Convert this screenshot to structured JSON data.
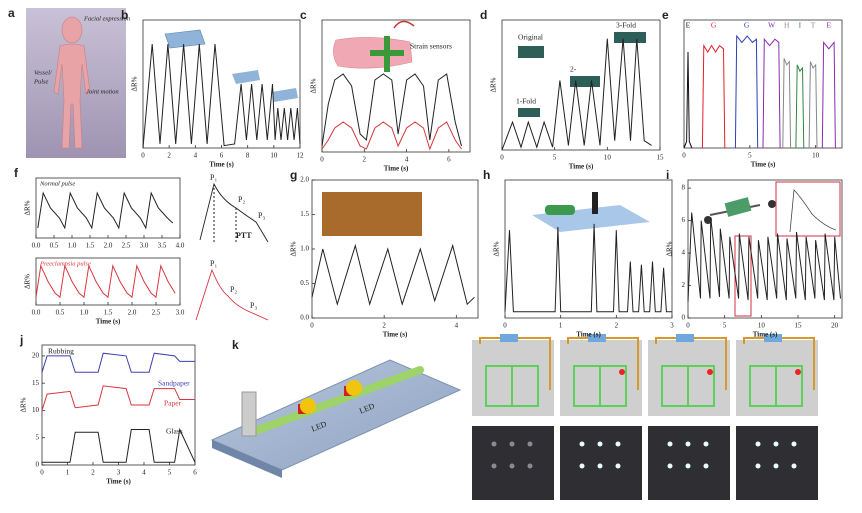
{
  "chart_data": [
    {
      "type": "line",
      "panel": "b",
      "xlabel": "Time (s)",
      "ylabel": "ΔR%",
      "xlim": [
        0,
        12
      ],
      "xticks": [
        0,
        2,
        4,
        6,
        8,
        10,
        12
      ],
      "ylim": [
        0,
        16
      ],
      "x": [
        0,
        0.7,
        1.3,
        1.9,
        2.5,
        3.1,
        3.7,
        4.3,
        4.9,
        5.5,
        6.2,
        7.0,
        7.5,
        7.9,
        8.3,
        8.7,
        9.1,
        9.5,
        9.9,
        10.1,
        10.3,
        10.55,
        10.8,
        11.05,
        11.3,
        11.55,
        11.8,
        12
      ],
      "series": [
        {
          "color": "#222222",
          "values": [
            0,
            13,
            0.5,
            13,
            0.5,
            13,
            0.5,
            13,
            0.5,
            13,
            0.3,
            0.5,
            8,
            1,
            8,
            1,
            8,
            1,
            8,
            1,
            5,
            1,
            5,
            1,
            5,
            1,
            5,
            0.5
          ]
        }
      ]
    },
    {
      "type": "line",
      "panel": "c",
      "xlabel": "Time (s)",
      "ylabel": "ΔR%",
      "xlim": [
        0,
        7
      ],
      "xticks": [
        0,
        2,
        4,
        6
      ],
      "ylim": [
        0,
        22
      ],
      "annotations": [
        "Strain sensors"
      ],
      "x": [
        0,
        0.3,
        0.6,
        1.0,
        1.4,
        1.8,
        2.1,
        2.5,
        2.9,
        3.3,
        3.6,
        4.0,
        4.4,
        4.8,
        5.1,
        5.5,
        5.9,
        6.3,
        6.6
      ],
      "series": [
        {
          "color": "#222222",
          "values": [
            1,
            8,
            12,
            13,
            11,
            3,
            2,
            12,
            13,
            12,
            3,
            12,
            13,
            11,
            2,
            12,
            13,
            5,
            1
          ]
        },
        {
          "color": "#d9363e",
          "values": [
            0.5,
            2,
            4,
            5,
            4,
            1,
            0.5,
            4,
            5,
            4,
            1,
            4,
            5,
            4,
            0.5,
            4,
            5,
            2,
            0.5
          ]
        }
      ]
    },
    {
      "type": "line",
      "panel": "d",
      "xlabel": "Time (s)",
      "ylabel": "ΔR%",
      "xlim": [
        0,
        15
      ],
      "xticks": [
        0,
        5,
        10,
        15
      ],
      "ylim": [
        0,
        14
      ],
      "annotations": [
        "Original",
        "1-Fold",
        "2-",
        "3-Fold"
      ],
      "x": [
        0,
        1,
        1.8,
        2.5,
        3.3,
        4,
        4.8,
        5.5,
        6.3,
        7,
        7.8,
        8.5,
        9.3,
        10,
        10.7,
        11.5,
        12.2,
        12.8,
        13.5,
        14.2
      ],
      "series": [
        {
          "color": "#222222",
          "values": [
            0,
            3,
            0.3,
            3,
            0.3,
            3,
            0.3,
            7.5,
            0.5,
            7.5,
            0.5,
            7.5,
            0.5,
            12,
            1,
            12,
            1,
            12,
            1,
            0.5
          ]
        }
      ]
    },
    {
      "type": "line",
      "panel": "e",
      "xlabel": "Time (s)",
      "xlim": [
        0,
        12
      ],
      "xticks": [
        0,
        5,
        10
      ],
      "ylim": [
        0,
        40
      ],
      "series": [
        {
          "name": "E",
          "color": "#111111",
          "x": [
            0,
            0.2,
            0.3,
            0.4,
            0.6
          ],
          "values": [
            0,
            2,
            30,
            2,
            0
          ]
        },
        {
          "name": "G",
          "color": "#e0202a",
          "x": [
            1.4,
            1.5,
            1.8,
            2.1,
            2.4,
            2.7,
            3.0,
            3.1
          ],
          "values": [
            0,
            32,
            30,
            32,
            30,
            32,
            31,
            0
          ]
        },
        {
          "name": "G",
          "color": "#2b3fb8",
          "x": [
            3.9,
            4.0,
            4.4,
            4.8,
            5.2,
            5.5,
            5.6
          ],
          "values": [
            0,
            35,
            33,
            35,
            33,
            34,
            0
          ]
        },
        {
          "name": "W",
          "color": "#8a2bb0",
          "x": [
            6.0,
            6.1,
            6.5,
            6.9,
            7.2,
            7.3
          ],
          "values": [
            0,
            34,
            32,
            34,
            33,
            0
          ]
        },
        {
          "name": "H",
          "color": "#888888",
          "x": [
            7.5,
            7.6,
            7.8,
            8.0,
            8.1
          ],
          "values": [
            0,
            28,
            26,
            27,
            0
          ]
        },
        {
          "name": "I",
          "color": "#2c8a3a",
          "x": [
            8.5,
            8.6,
            8.8,
            9.0,
            9.1
          ],
          "values": [
            0,
            26,
            24,
            25,
            0
          ]
        },
        {
          "name": "T",
          "color": "#888888",
          "x": [
            9.5,
            9.6,
            9.8,
            10.0,
            10.1
          ],
          "values": [
            0,
            27,
            25,
            26,
            0
          ]
        },
        {
          "name": "E",
          "color": "#8a2bb0",
          "x": [
            10.5,
            10.6,
            11.0,
            11.4,
            11.5
          ],
          "values": [
            0,
            33,
            31,
            33,
            0
          ]
        }
      ]
    },
    {
      "type": "line",
      "panel": "f",
      "title": "Normal pulse",
      "ylabel": "ΔR%",
      "xlim": [
        0,
        4
      ],
      "ylim": [
        0,
        6
      ],
      "xticks": [
        {
          "value": 0,
          "label": "0.0"
        },
        0.5,
        {
          "value": 1,
          "label": "1.0"
        },
        1.5,
        {
          "value": 2,
          "label": "2.0"
        },
        2.5,
        {
          "value": 3,
          "label": "3.0"
        },
        3.5,
        {
          "value": 4,
          "label": "4.0"
        }
      ],
      "x": [
        0.05,
        0.2,
        0.4,
        0.65,
        0.8,
        0.95,
        1.15,
        1.4,
        1.55,
        1.7,
        1.9,
        2.15,
        2.3,
        2.45,
        2.65,
        2.9,
        3.05,
        3.2,
        3.4,
        3.65,
        3.8
      ],
      "series": [
        {
          "color": "#222222",
          "values": [
            1,
            4.5,
            3,
            2,
            1,
            4.5,
            3,
            2,
            1,
            4.5,
            3,
            2,
            1,
            4.5,
            3,
            2,
            1,
            4.5,
            3,
            2,
            1.5
          ]
        }
      ]
    },
    {
      "type": "line",
      "title": "Preeclampsia pulse",
      "xlabel": "Time (s)",
      "ylabel": "ΔR%",
      "xlim": [
        0,
        3
      ],
      "ylim": [
        0,
        6
      ],
      "xticks": [
        {
          "value": 0,
          "label": "0.0"
        },
        0.5,
        {
          "value": 1,
          "label": "1.0"
        },
        1.5,
        {
          "value": 2,
          "label": "2.0"
        },
        2.5,
        {
          "value": 3,
          "label": "3.0"
        }
      ],
      "x": [
        0,
        0.1,
        0.25,
        0.4,
        0.5,
        0.6,
        0.75,
        0.9,
        1.0,
        1.1,
        1.25,
        1.4,
        1.5,
        1.6,
        1.75,
        1.9,
        2.0,
        2.1,
        2.25,
        2.4,
        2.5,
        2.6,
        2.75,
        2.9
      ],
      "series": [
        {
          "color": "#d9363e",
          "values": [
            1,
            5,
            3,
            1.5,
            1,
            5,
            3,
            1.5,
            1,
            5,
            3,
            1.5,
            1,
            5,
            3,
            1.5,
            1,
            5,
            3,
            1.5,
            1,
            5,
            3,
            1.5
          ]
        }
      ]
    },
    {
      "type": "line",
      "panel": "g",
      "xlabel": "Time (s)",
      "ylabel": "ΔR%",
      "xlim": [
        0,
        4.6
      ],
      "xticks": [
        0,
        2,
        4
      ],
      "ylim": [
        0,
        2
      ],
      "yticks": [
        {
          "value": 0,
          "label": "0.0"
        },
        0.5,
        {
          "value": 1,
          "label": "1.0"
        },
        1.5,
        {
          "value": 2,
          "label": "2.0"
        }
      ],
      "x": [
        0,
        0.3,
        0.7,
        1.2,
        1.6,
        2.1,
        2.5,
        3.0,
        3.4,
        3.9,
        4.3,
        4.5
      ],
      "series": [
        {
          "color": "#222222",
          "values": [
            0.3,
            1.0,
            0.2,
            1.05,
            0.2,
            1.0,
            0.2,
            1.0,
            0.25,
            1.05,
            0.2,
            0.3
          ]
        }
      ]
    },
    {
      "type": "line",
      "panel": "h",
      "xlabel": "Time (s)",
      "ylabel": "ΔR%",
      "xlim": [
        0,
        3
      ],
      "xticks": [
        0,
        1,
        2,
        3
      ],
      "ylim": [
        0,
        2.2
      ],
      "x": [
        0,
        0.08,
        0.15,
        0.9,
        0.95,
        1.0,
        1.55,
        1.6,
        1.65,
        1.95,
        2.0,
        2.05,
        2.2,
        2.25,
        2.3,
        2.4,
        2.45,
        2.5,
        2.6,
        2.65,
        2.7,
        2.8,
        2.85,
        2.9,
        3
      ],
      "series": [
        {
          "color": "#222222",
          "values": [
            0.1,
            1.4,
            0.1,
            0.1,
            1.45,
            0.1,
            0.1,
            1.5,
            0.1,
            0.1,
            1.4,
            0.1,
            0.1,
            0.9,
            0.1,
            0.1,
            0.85,
            0.1,
            0.1,
            0.9,
            0.1,
            0.1,
            0.8,
            0.1,
            0.1
          ]
        }
      ]
    },
    {
      "type": "line",
      "panel": "i",
      "xlabel": "Time (s)",
      "ylabel": "ΔR%",
      "xlim": [
        0,
        21
      ],
      "xticks": [
        0,
        5,
        10,
        15,
        20
      ],
      "ylim": [
        0,
        8.5
      ],
      "yticks": [
        0,
        2,
        4,
        6,
        8
      ],
      "x": [
        0,
        0.5,
        1.7,
        1.8,
        3.0,
        3.1,
        4.3,
        4.4,
        5.6,
        5.7,
        6.9,
        7.0,
        8.2,
        8.3,
        9.5,
        9.6,
        10.8,
        10.9,
        12.1,
        12.2,
        13.4,
        13.5,
        14.7,
        14.8,
        16.0,
        16.1,
        17.3,
        17.4,
        18.6,
        18.7,
        19.9,
        20.0,
        20.8
      ],
      "series": [
        {
          "color": "#222222",
          "values": [
            1,
            6.5,
            1.2,
            6.0,
            1.2,
            6.2,
            1.3,
            5.5,
            1.2,
            5.0,
            1.2,
            5.2,
            1.1,
            5.0,
            1.2,
            4.8,
            1.1,
            5.0,
            1.2,
            5.2,
            1.1,
            4.9,
            1.2,
            5.3,
            1.1,
            5.0,
            1.2,
            4.8,
            1.1,
            5.2,
            1.1,
            5.0,
            1.2
          ]
        }
      ]
    },
    {
      "type": "line",
      "panel": "j",
      "xlabel": "Time (s)",
      "ylabel": "ΔR%",
      "xlim": [
        0,
        6
      ],
      "xticks": [
        0,
        1,
        2,
        3,
        4,
        5,
        6
      ],
      "ylim": [
        0,
        22
      ],
      "yticks": [
        0,
        5,
        10,
        15,
        20
      ],
      "annotations": [
        "Rubbing"
      ],
      "x": [
        0,
        0.2,
        1.1,
        1.3,
        2.2,
        2.4,
        3.3,
        3.5,
        4.2,
        4.4,
        5.2,
        5.4,
        6
      ],
      "series": [
        {
          "name": "Sandpaper",
          "color": "#3d3fb0",
          "values": [
            17,
            20,
            20,
            17,
            17,
            20.5,
            20,
            17,
            17,
            20.5,
            20,
            19,
            19
          ]
        },
        {
          "name": "Paper",
          "color": "#d9363e",
          "values": [
            10,
            13,
            13.5,
            10.5,
            11,
            14.5,
            14,
            11,
            11,
            14,
            14,
            12,
            12
          ]
        },
        {
          "name": "Glass",
          "color": "#222222",
          "values": [
            0.5,
            0.5,
            0.5,
            6,
            6,
            0.5,
            0.5,
            6.5,
            6.5,
            0.5,
            0.5,
            6.5,
            0.5
          ]
        }
      ]
    }
  ],
  "figures": {
    "a": {
      "panel": "a",
      "labels": [
        "Facial expression",
        "Vessel/",
        "Pulse",
        "Joint motion"
      ]
    },
    "f": {
      "normal": [
        "P₁",
        "P₂",
        "P₃",
        "PTT"
      ],
      "preeclampsia": [
        "P₁",
        "P₂",
        "P₃"
      ]
    },
    "k": {
      "panel": "k",
      "labels": [
        "LED",
        "LED"
      ]
    }
  }
}
